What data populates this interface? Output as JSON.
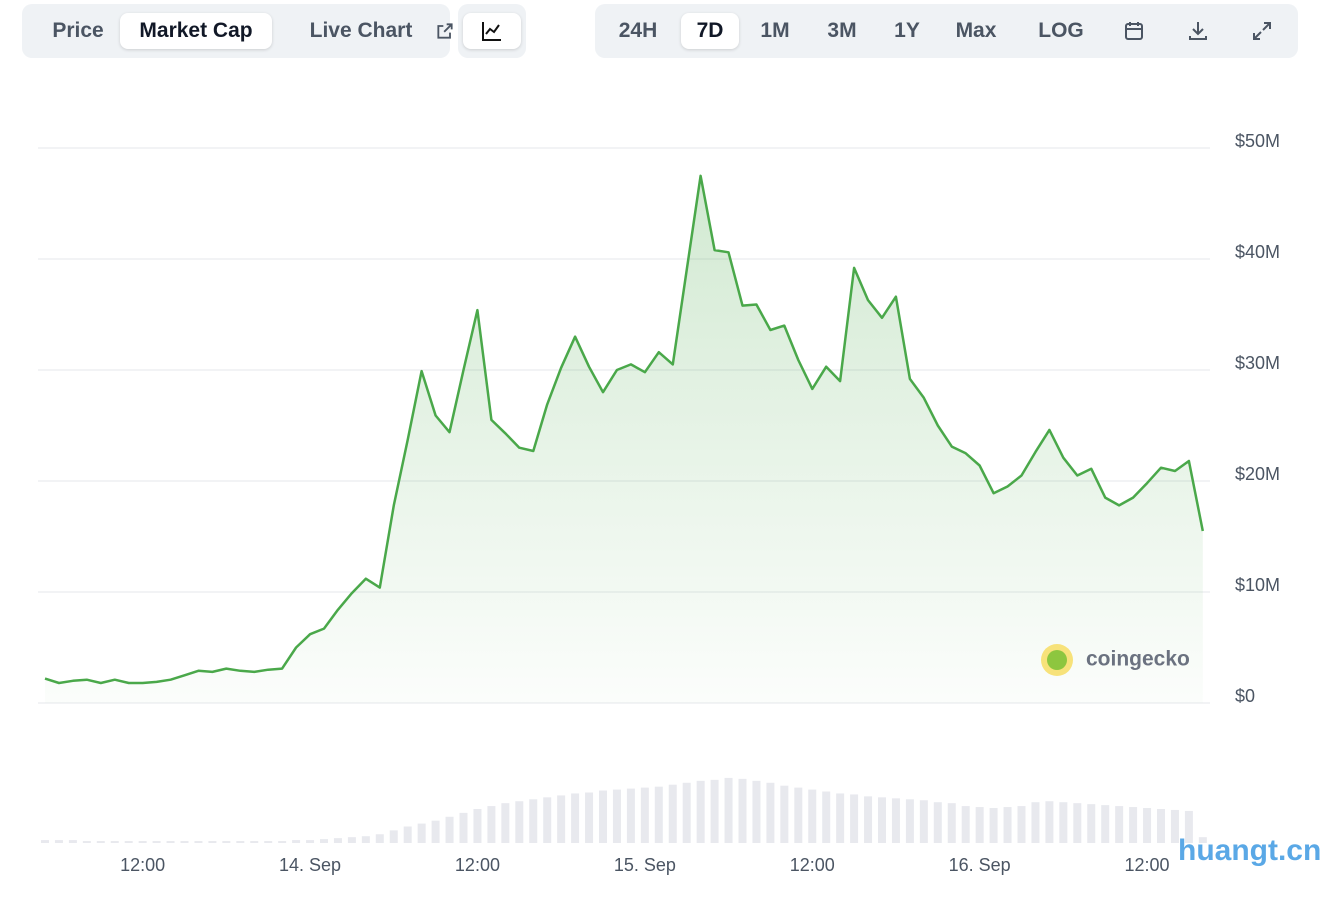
{
  "ui": {
    "tabs": [
      "Price",
      "Market Cap",
      "Live Chart"
    ],
    "active_tab": 1,
    "ranges": [
      "24H",
      "7D",
      "1M",
      "3M",
      "1Y",
      "Max",
      "LOG"
    ],
    "active_range": 1,
    "watermark": "coingecko",
    "site": "huangt.cn"
  },
  "chart_data": [
    {
      "type": "line",
      "color": "#4aa84a",
      "area": true,
      "grid": true,
      "categories": [
        null,
        null,
        null,
        null,
        null,
        null,
        null,
        "12:00",
        null,
        null,
        null,
        null,
        null,
        null,
        null,
        null,
        null,
        null,
        null,
        "14. Sep",
        null,
        null,
        null,
        null,
        null,
        null,
        null,
        null,
        null,
        null,
        null,
        "12:00",
        null,
        null,
        null,
        null,
        null,
        null,
        null,
        null,
        null,
        null,
        null,
        "15. Sep",
        null,
        null,
        null,
        null,
        null,
        null,
        null,
        null,
        null,
        null,
        null,
        "12:00",
        null,
        null,
        null,
        null,
        null,
        null,
        null,
        null,
        null,
        null,
        null,
        "16. Sep",
        null,
        null,
        null,
        null,
        null,
        null,
        null,
        null,
        null,
        null,
        null,
        "12:00",
        null,
        null,
        null,
        null
      ],
      "values": [
        2.2,
        1.8,
        2.0,
        2.1,
        1.8,
        2.1,
        1.8,
        1.8,
        1.9,
        2.1,
        2.5,
        2.9,
        2.8,
        3.1,
        2.9,
        2.8,
        3.0,
        3.1,
        5.0,
        6.2,
        6.7,
        8.4,
        9.9,
        11.2,
        10.4,
        17.8,
        23.7,
        29.9,
        25.9,
        24.4,
        30.0,
        35.4,
        25.5,
        24.3,
        23.0,
        22.7,
        26.9,
        30.2,
        33.0,
        30.3,
        28.0,
        30.0,
        30.5,
        29.8,
        31.6,
        30.5,
        39.0,
        47.5,
        40.8,
        40.6,
        35.8,
        35.9,
        33.6,
        34.0,
        30.9,
        28.3,
        30.3,
        29.0,
        39.2,
        36.3,
        34.7,
        36.6,
        29.2,
        27.5,
        25.0,
        23.1,
        22.5,
        21.4,
        18.9,
        19.5,
        20.5,
        22.6,
        24.6,
        22.1,
        20.5,
        21.1,
        18.5,
        17.8,
        18.5,
        19.8,
        21.2,
        20.9,
        21.8,
        15.5
      ],
      "ylim": [
        0,
        50
      ],
      "yticks": [
        {
          "value": 0,
          "label": "$0"
        },
        {
          "value": 10,
          "label": "$10M"
        },
        {
          "value": 20,
          "label": "$20M"
        },
        {
          "value": 30,
          "label": "$30M"
        },
        {
          "value": 40,
          "label": "$40M"
        },
        {
          "value": 50,
          "label": "$50M"
        }
      ]
    },
    {
      "type": "bar",
      "color": "#e8e9ee",
      "ylim": [
        0,
        70
      ],
      "values": [
        3,
        3,
        3,
        2,
        2,
        2,
        2,
        2,
        2,
        2,
        2,
        2,
        2,
        2,
        2,
        2,
        2,
        2,
        3,
        3,
        4,
        5,
        6,
        7,
        9,
        13,
        17,
        20,
        23,
        27,
        31,
        35,
        38,
        41,
        43,
        45,
        47,
        49,
        51,
        52,
        54,
        55,
        56,
        57,
        58,
        60,
        62,
        64,
        65,
        67,
        66,
        64,
        62,
        59,
        57,
        55,
        53,
        51,
        50,
        48,
        47,
        46,
        45,
        44,
        42,
        41,
        38,
        37,
        36,
        37,
        38,
        42,
        43,
        42,
        41,
        40,
        39,
        38,
        37,
        36,
        35,
        34,
        33,
        6
      ]
    }
  ]
}
